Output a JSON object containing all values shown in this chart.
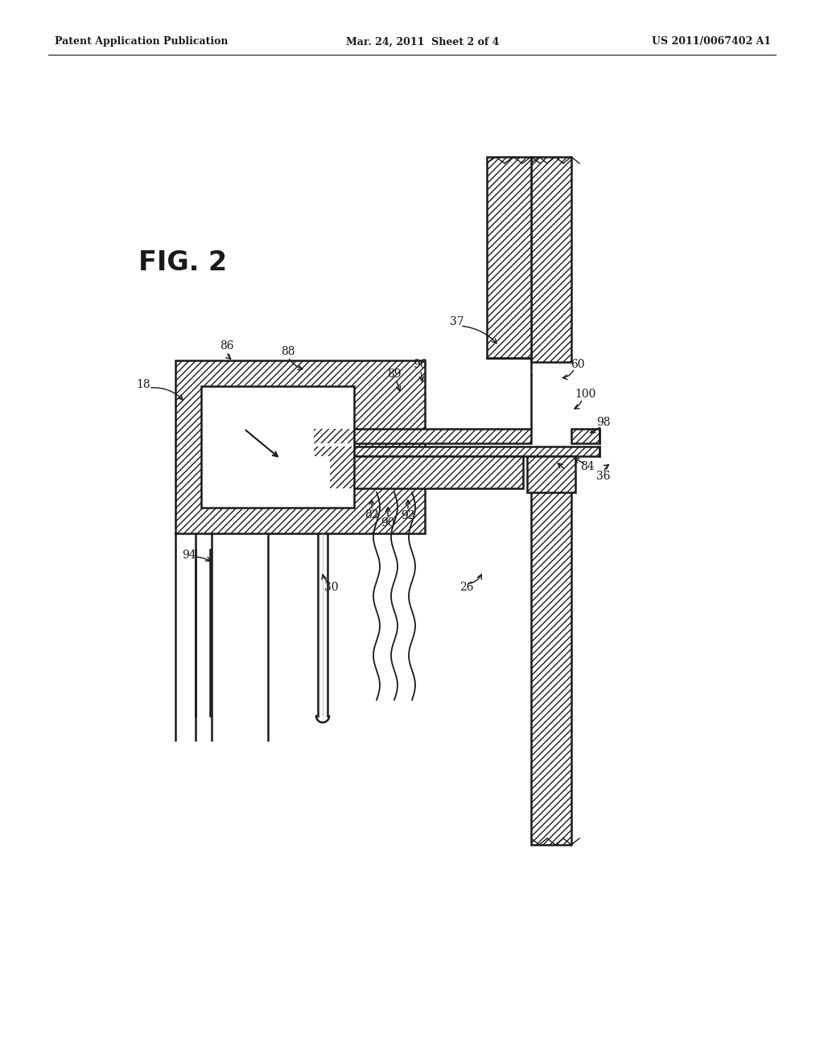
{
  "background_color": "#ffffff",
  "header_left": "Patent Application Publication",
  "header_center": "Mar. 24, 2011  Sheet 2 of 4",
  "header_right": "US 2011/0067402 A1",
  "black": "#1a1a1a"
}
